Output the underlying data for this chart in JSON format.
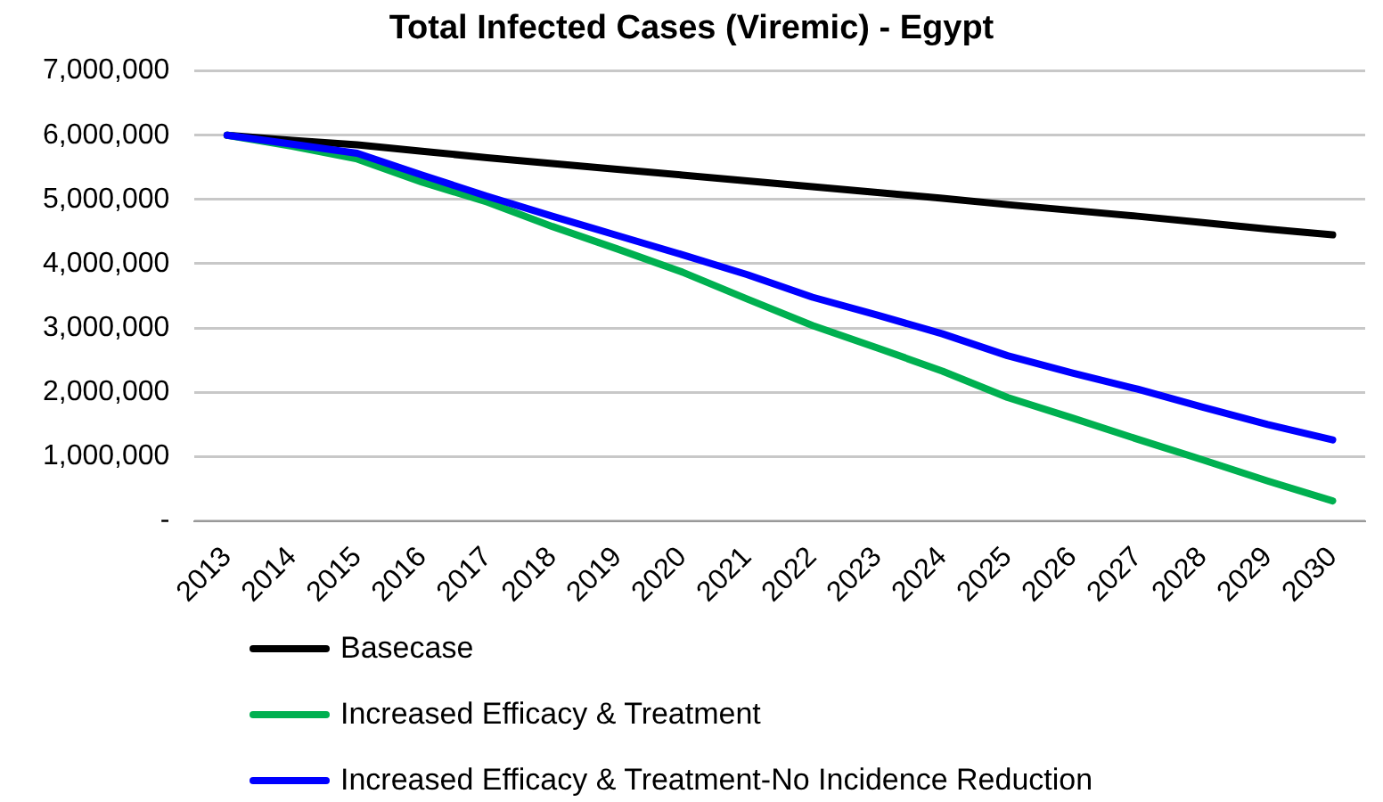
{
  "chart_data": {
    "type": "line",
    "title": "Total Infected Cases (Viremic) - Egypt",
    "categories": [
      "2013",
      "2014",
      "2015",
      "2016",
      "2017",
      "2018",
      "2019",
      "2020",
      "2021",
      "2022",
      "2023",
      "2024",
      "2025",
      "2026",
      "2027",
      "2028",
      "2029",
      "2030"
    ],
    "series": [
      {
        "name": "Basecase",
        "color": "#000000",
        "values": [
          6000000,
          5920000,
          5850000,
          5750000,
          5650000,
          5560000,
          5470000,
          5380000,
          5290000,
          5200000,
          5110000,
          5020000,
          4920000,
          4830000,
          4740000,
          4640000,
          4540000,
          4450000
        ]
      },
      {
        "name": "Increased Efficacy & Treatment",
        "color": "#00b050",
        "values": [
          6000000,
          5830000,
          5630000,
          5270000,
          4960000,
          4580000,
          4230000,
          3870000,
          3450000,
          3040000,
          2690000,
          2330000,
          1920000,
          1600000,
          1270000,
          950000,
          620000,
          310000
        ]
      },
      {
        "name": "Increased Efficacy & Treatment-No Incidence Reduction",
        "color": "#0000ff",
        "values": [
          6000000,
          5860000,
          5720000,
          5380000,
          5050000,
          4740000,
          4440000,
          4140000,
          3830000,
          3480000,
          3200000,
          2910000,
          2570000,
          2300000,
          2050000,
          1770000,
          1500000,
          1260000
        ]
      }
    ],
    "ylim": [
      0,
      7000000
    ],
    "yticks": [
      {
        "value": 0,
        "label": "-"
      },
      {
        "value": 1000000,
        "label": "1,000,000"
      },
      {
        "value": 2000000,
        "label": "2,000,000"
      },
      {
        "value": 3000000,
        "label": "3,000,000"
      },
      {
        "value": 4000000,
        "label": "4,000,000"
      },
      {
        "value": 5000000,
        "label": "5,000,000"
      },
      {
        "value": 6000000,
        "label": "6,000,000"
      },
      {
        "value": 7000000,
        "label": "7,000,000"
      }
    ],
    "grid": "y",
    "legend": "bottom",
    "marker": "none",
    "line_style": "solid"
  }
}
